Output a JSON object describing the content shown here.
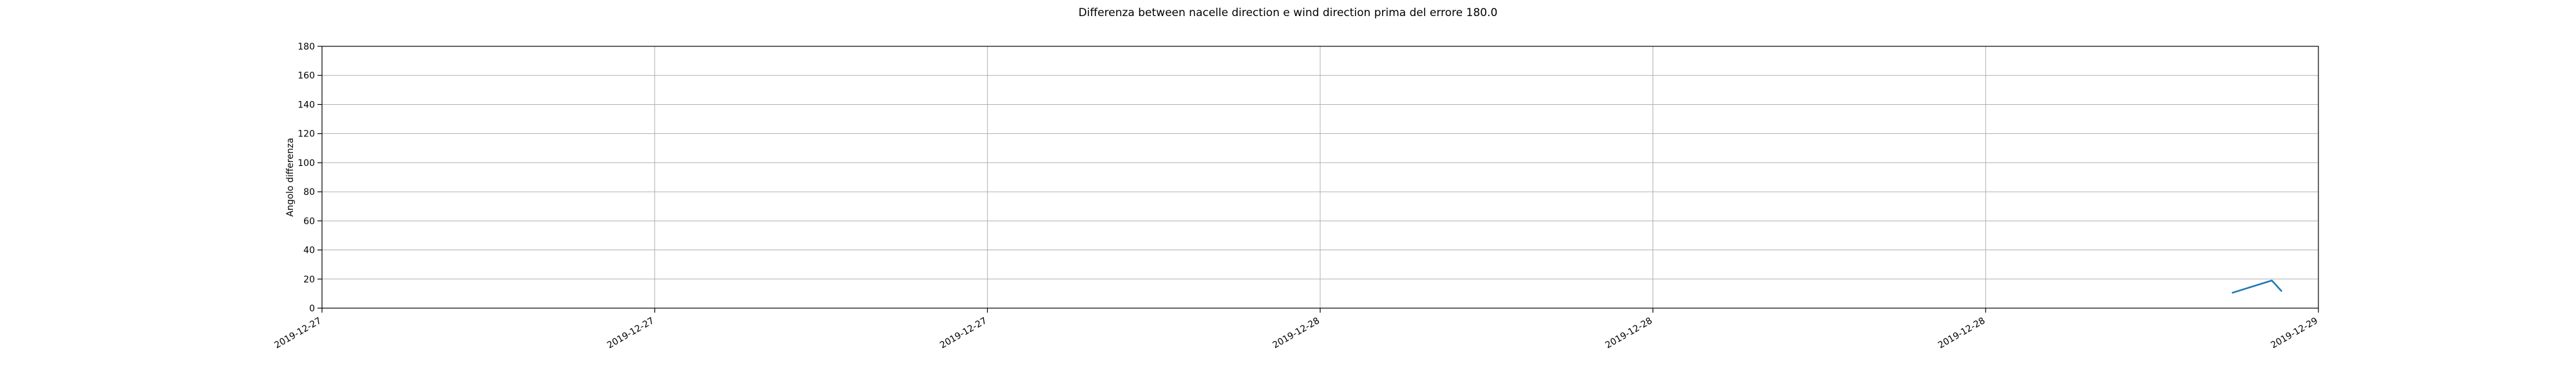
{
  "chart_data": {
    "type": "line",
    "title": "Differenza between nacelle direction e wind direction prima del errore 180.0",
    "xlabel": "",
    "ylabel": "Angolo differenza",
    "ylim": [
      0,
      180
    ],
    "yticks": [
      0,
      20,
      40,
      60,
      80,
      100,
      120,
      140,
      160,
      180
    ],
    "xlim": [
      0,
      6
    ],
    "xtick_labels": [
      "2019-12-27",
      "2019-12-27",
      "2019-12-27",
      "2019-12-28",
      "2019-12-28",
      "2019-12-28",
      "2019-12-29"
    ],
    "grid": true,
    "series": [
      {
        "color": "#1f77b4",
        "x": [
          5.74,
          5.86,
          5.89
        ],
        "values": [
          10.5,
          19,
          11.5
        ]
      }
    ]
  }
}
